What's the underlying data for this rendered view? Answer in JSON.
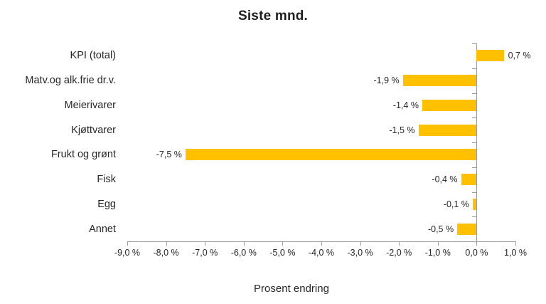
{
  "chart_data": {
    "type": "bar",
    "orientation": "horizontal",
    "title": "Siste mnd.",
    "xlabel": "Prosent endring",
    "ylabel": "",
    "categories": [
      "KPI (total)",
      "Matv.og alk.frie dr.v.",
      "Meierivarer",
      "Kjøttvarer",
      "Frukt og grønt",
      "Fisk",
      "Egg",
      "Annet"
    ],
    "values": [
      0.7,
      -1.9,
      -1.4,
      -1.5,
      -7.5,
      -0.4,
      -0.1,
      -0.5
    ],
    "value_labels": [
      "0,7 %",
      "-1,9 %",
      "-1,4 %",
      "-1,5 %",
      "-7,5 %",
      "-0,4 %",
      "-0,1 %",
      "-0,5 %"
    ],
    "xlim": [
      -9.0,
      1.0
    ],
    "xticks": [
      -9,
      -8,
      -7,
      -6,
      -5,
      -4,
      -3,
      -2,
      -1,
      0,
      1
    ],
    "xtick_labels": [
      "-9,0 %",
      "-8,0 %",
      "-7,0 %",
      "-6,0 %",
      "-5,0 %",
      "-4,0 %",
      "-3,0 %",
      "-2,0 %",
      "-1,0 %",
      "0,0 %",
      "1,0 %"
    ],
    "grid": false,
    "legend": false,
    "bar_color": "#FFC000",
    "axis_color": "#9a9a9a",
    "text_color": "#262626"
  }
}
